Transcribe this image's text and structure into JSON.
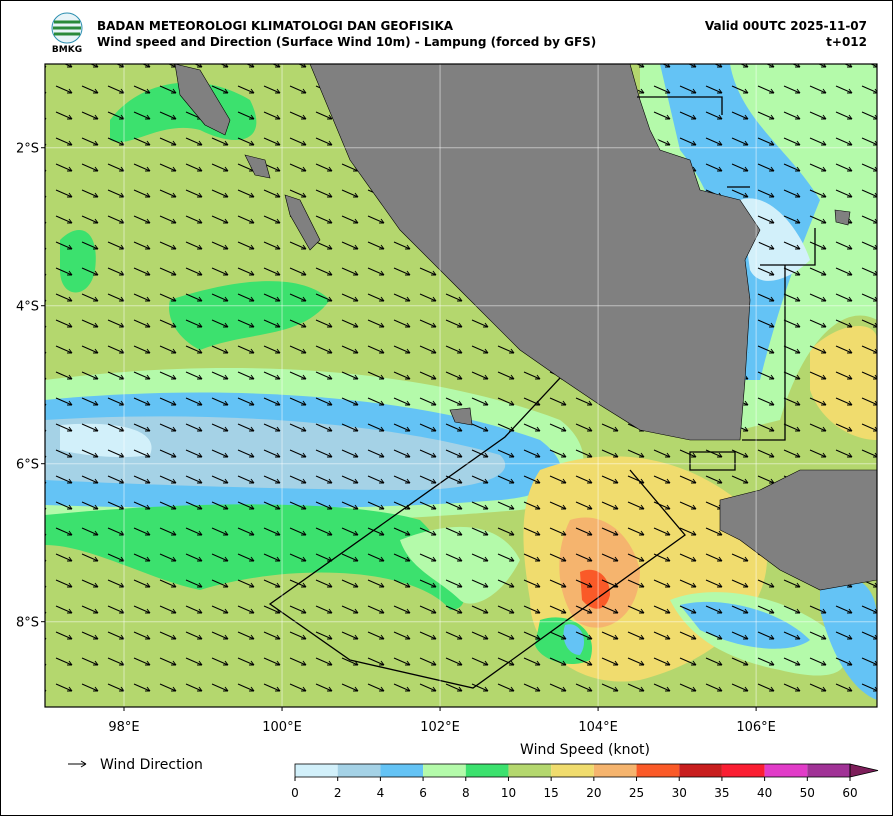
{
  "header": {
    "logo_text": "BMKG",
    "title": "BADAN METEOROLOGI KLIMATOLOGI DAN GEOFISIKA",
    "subtitle": "Wind speed and Direction (Surface Wind 10m) - Lampung (forced by GFS)",
    "valid": "Valid 00UTC 2025-11-07",
    "lead": "t+012"
  },
  "map": {
    "lonlim": [
      97,
      107.53
    ],
    "latlim": [
      -0.94,
      -9.08
    ],
    "lon_ticks": [
      {
        "value": 98,
        "label": "98°E"
      },
      {
        "value": 100,
        "label": "100°E"
      },
      {
        "value": 102,
        "label": "102°E"
      },
      {
        "value": 104,
        "label": "104°E"
      },
      {
        "value": 106,
        "label": "106°E"
      }
    ],
    "lat_ticks": [
      {
        "value": -2,
        "label": "2°S"
      },
      {
        "value": -4,
        "label": "4°S"
      },
      {
        "value": -6,
        "label": "6°S"
      },
      {
        "value": -8,
        "label": "8°S"
      }
    ]
  },
  "legend": {
    "arrow_label": "Wind Direction"
  },
  "colorbar": {
    "title": "Wind Speed (knot)",
    "ticks": [
      0,
      2,
      4,
      6,
      8,
      10,
      15,
      20,
      25,
      30,
      35,
      40,
      50,
      60
    ],
    "colors": [
      "#d2f0fa",
      "#a5d2e6",
      "#64c3f5",
      "#b4faaa",
      "#3ce16e",
      "#b4d76e",
      "#f0dc6e",
      "#f5b46e",
      "#fa5a28",
      "#c81e1e",
      "#fa1e32",
      "#e13cc8",
      "#a03296",
      "#7d1e5a"
    ]
  }
}
